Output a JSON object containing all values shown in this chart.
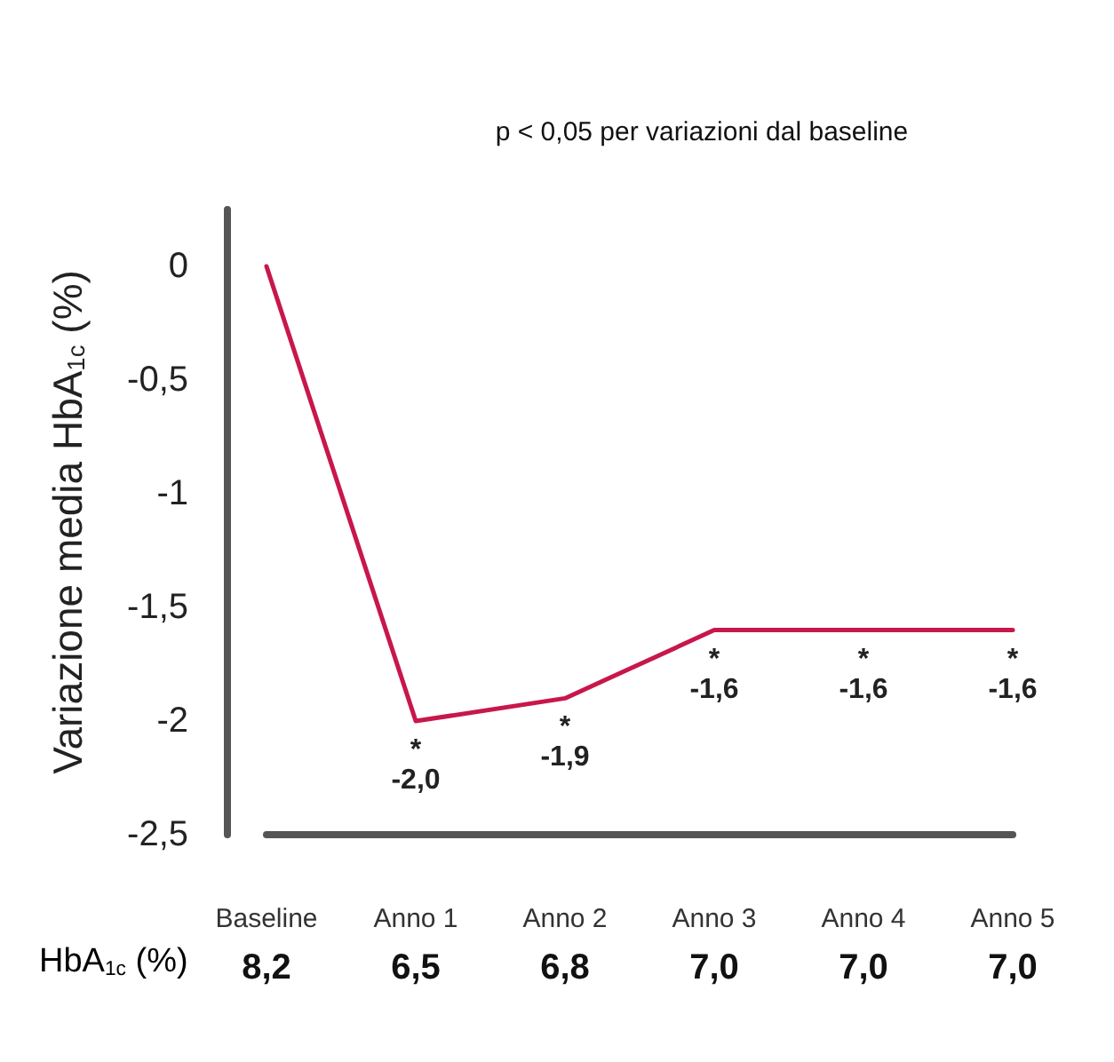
{
  "chart_data": {
    "type": "line",
    "title": "p < 0,05 per variazioni dal baseline",
    "ylabel": "Variazione media HbA$_{1c}$ (%)",
    "categories": [
      "Baseline",
      "Anno 1",
      "Anno 2",
      "Anno 3",
      "Anno 4",
      "Anno 5"
    ],
    "series": [
      {
        "color": "#c8174a",
        "values": [
          0,
          -2.0,
          -1.9,
          -1.6,
          -1.6,
          -1.6
        ],
        "value_labels": [
          null,
          "*\n-2,0",
          "*\n-1,9",
          "*\n-1,6",
          "*\n-1,6",
          "*\n-1,6"
        ]
      }
    ],
    "ylim": [
      -2.5,
      0.25
    ],
    "yticks": [
      {
        "value": 0,
        "label": "0"
      },
      {
        "value": -0.5,
        "label": "-0,5"
      },
      {
        "value": -1,
        "label": "-1"
      },
      {
        "value": -1.5,
        "label": "-1,5"
      },
      {
        "value": -2,
        "label": "-2"
      },
      {
        "value": -2.5,
        "label": "-2,5"
      }
    ],
    "annotations": [
      "HbA$_{1c}$ (%)",
      "8,2",
      "6,5",
      "6,8",
      "7,0",
      "7,0",
      "7,0"
    ],
    "grid": false,
    "marker": "none",
    "line_style": "solid"
  }
}
